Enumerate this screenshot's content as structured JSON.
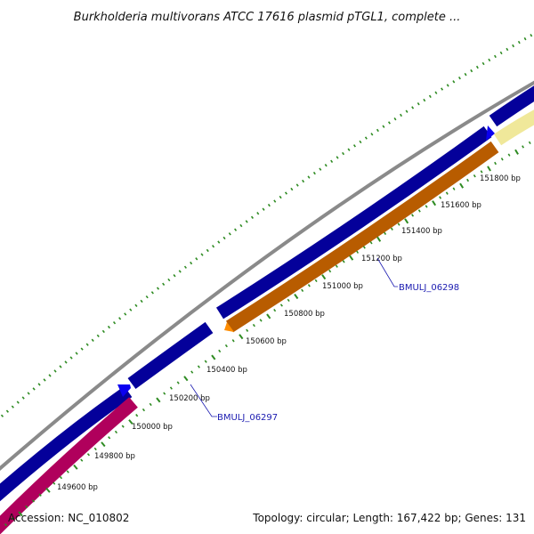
{
  "title": "Burkholderia multivorans ATCC 17616 plasmid pTGL1, complete ...",
  "footer": {
    "accession": "Accession: NC_010802",
    "summary": "Topology: circular; Length: 167,422 bp; Genes: 131"
  },
  "colors": {
    "backbone": "#8a8a8a",
    "forward_gene": "#0b00f0",
    "reverse_gene_orange": "#ff8c00",
    "reverse_gene_pink": "#ff1493",
    "forward_gene_pale": "#f0e89a",
    "tick": "#2e8b22",
    "label_link": "#1a1ab0"
  },
  "ticks": {
    "labels": [
      "149600 bp",
      "149800 bp",
      "150000 bp",
      "150200 bp",
      "150400 bp",
      "150600 bp",
      "150800 bp",
      "151000 bp",
      "151200 bp",
      "151400 bp",
      "151600 bp",
      "151800 bp"
    ]
  },
  "genes": {
    "labels": [
      "BMULJ_06297",
      "BMULJ_06298"
    ]
  }
}
